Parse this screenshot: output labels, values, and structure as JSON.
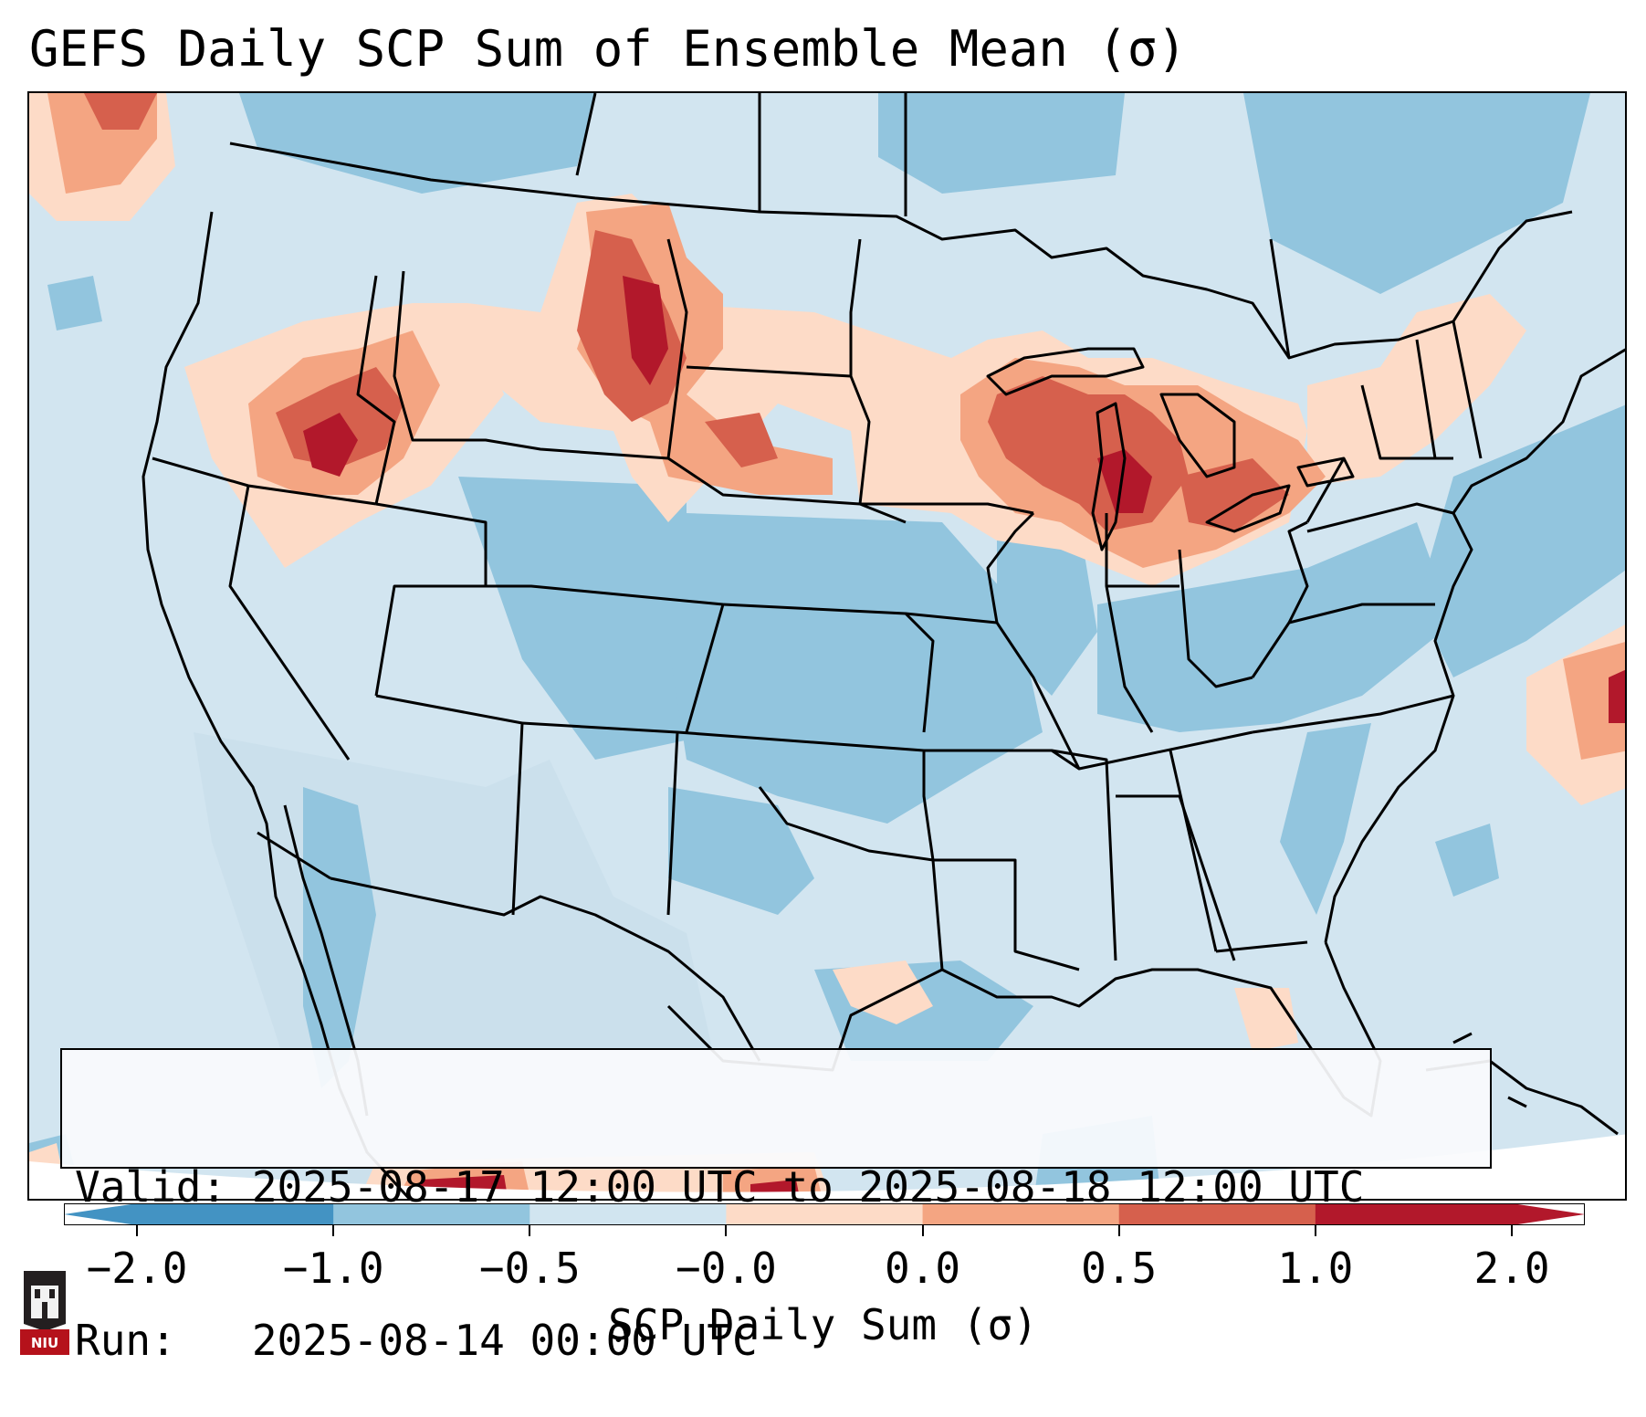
{
  "title": "GEFS Daily SCP Sum of Ensemble Mean (σ)",
  "info": {
    "valid_line": "Valid: 2025-08-17 12:00 UTC to 2025-08-18 12:00 UTC",
    "run_line": "Run:   2025-08-14 00:00 UTC"
  },
  "colorbar": {
    "label": "SCP Daily Sum (σ)",
    "ticks": [
      "−2.0",
      "−1.0",
      "−0.5",
      "−0.0",
      "0.0",
      "0.5",
      "1.0",
      "2.0"
    ],
    "colors": [
      "#4393c3",
      "#92c5de",
      "#d1e5f0",
      "#fddbc7",
      "#f4a582",
      "#d6604d",
      "#b2182b"
    ]
  },
  "map": {
    "background_color": "#d2e5f0",
    "mexico_shade": "#cbe0ec",
    "state_line_color": "#000000"
  },
  "logo": {
    "text": "NIU",
    "color": "#b5121b"
  }
}
